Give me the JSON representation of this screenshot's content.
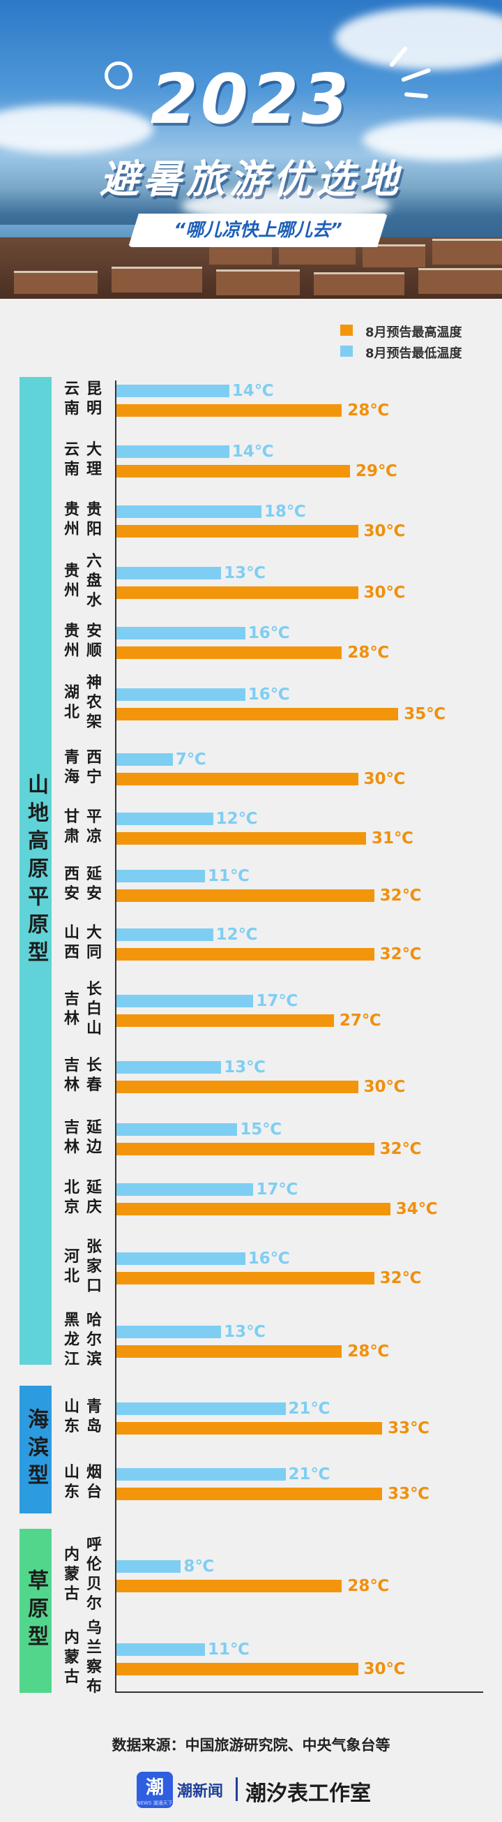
{
  "banner": {
    "year": "2023",
    "headline": "避暑旅游优选地",
    "slogan": "“哪儿凉快上哪儿去”"
  },
  "legend": {
    "high_label": "8月预告最高温度",
    "low_label": "8月预告最低温度"
  },
  "colors": {
    "high": "#f3950b",
    "low": "#7ecef3",
    "cat_mountain": "#5fd3d8",
    "cat_coast": "#2d9be0",
    "cat_grass": "#52d68c"
  },
  "chart_data": {
    "type": "bar",
    "orientation": "horizontal",
    "series": [
      {
        "name": "8月预告最低温度",
        "unit": "℃"
      },
      {
        "name": "8月预告最高温度",
        "unit": "℃"
      }
    ],
    "groups": [
      {
        "name": "山地高原平原型",
        "items": [
          {
            "province": "云南",
            "city": "昆明",
            "low": 14,
            "high": 28
          },
          {
            "province": "云南",
            "city": "大理",
            "low": 14,
            "high": 29
          },
          {
            "province": "贵州",
            "city": "贵阳",
            "low": 18,
            "high": 30
          },
          {
            "province": "贵州",
            "city": "六盘水",
            "low": 13,
            "high": 30
          },
          {
            "province": "贵州",
            "city": "安顺",
            "low": 16,
            "high": 28
          },
          {
            "province": "湖北",
            "city": "神农架",
            "low": 16,
            "high": 35
          },
          {
            "province": "青海",
            "city": "西宁",
            "low": 7,
            "high": 30
          },
          {
            "province": "甘肃",
            "city": "平凉",
            "low": 12,
            "high": 31
          },
          {
            "province": "西安",
            "city": "延安",
            "low": 11,
            "high": 32
          },
          {
            "province": "山西",
            "city": "大同",
            "low": 12,
            "high": 32
          },
          {
            "province": "吉林",
            "city": "长白山",
            "low": 17,
            "high": 27
          },
          {
            "province": "吉林",
            "city": "长春",
            "low": 13,
            "high": 30
          },
          {
            "province": "吉林",
            "city": "延边",
            "low": 15,
            "high": 32
          },
          {
            "province": "北京",
            "city": "延庆",
            "low": 17,
            "high": 34
          },
          {
            "province": "河北",
            "city": "张家口",
            "low": 16,
            "high": 32
          },
          {
            "province": "黑龙江",
            "city": "哈尔滨",
            "low": 13,
            "high": 28
          }
        ]
      },
      {
        "name": "海滨型",
        "items": [
          {
            "province": "山东",
            "city": "青岛",
            "low": 21,
            "high": 33
          },
          {
            "province": "山东",
            "city": "烟台",
            "low": 21,
            "high": 33
          }
        ]
      },
      {
        "name": "草原型",
        "items": [
          {
            "province": "内蒙古",
            "city": "呼伦贝尔",
            "low": 8,
            "high": 28
          },
          {
            "province": "内蒙古",
            "city": "乌兰察布",
            "low": 11,
            "high": 30
          }
        ]
      }
    ]
  },
  "footer": {
    "source": "数据来源：中国旅游研究院、中央气象台等",
    "logo_char": "潮",
    "logo_sub": "NEWS 潮涌天下",
    "brand": "潮新闻",
    "studio": "潮汐表工作室"
  }
}
